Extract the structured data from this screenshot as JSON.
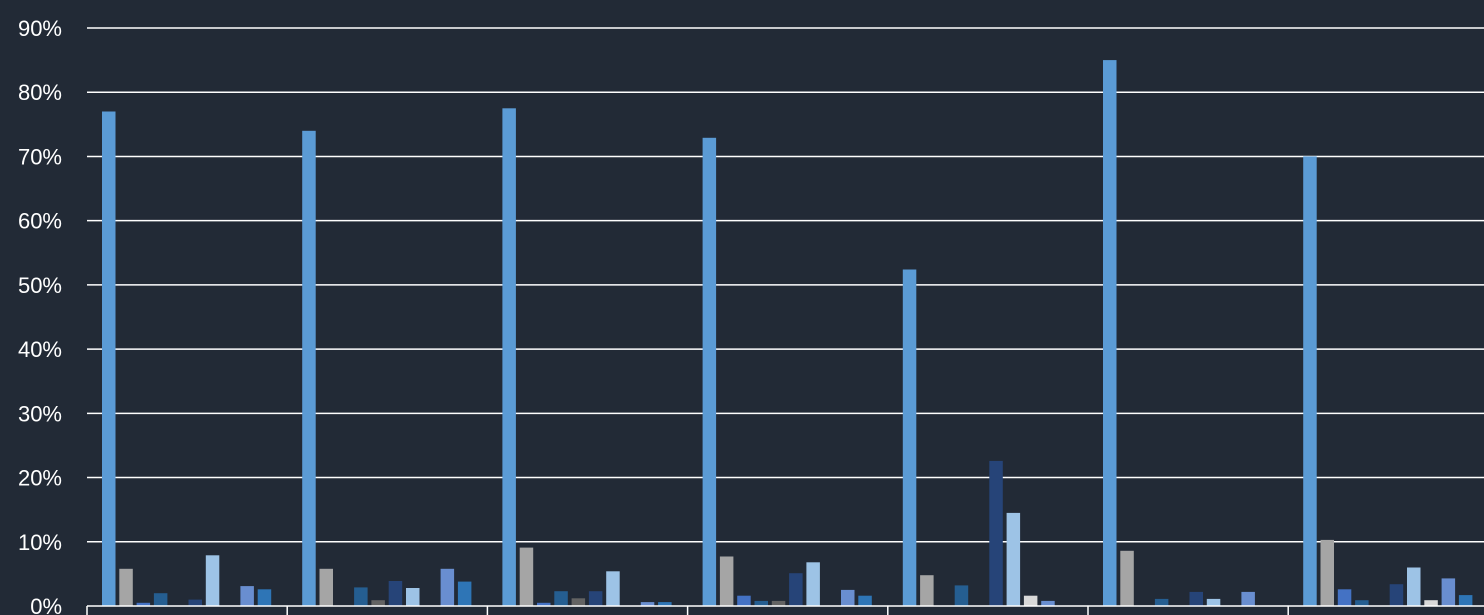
{
  "chart_data": {
    "type": "bar",
    "title": "",
    "xlabel": "",
    "ylabel": "",
    "ylim": [
      0,
      90
    ],
    "yticks": [
      0,
      10,
      20,
      30,
      40,
      50,
      60,
      70,
      80,
      90
    ],
    "ytick_labels": [
      "0%",
      "10%",
      "20%",
      "30%",
      "40%",
      "50%",
      "60%",
      "70%",
      "80%",
      "90%"
    ],
    "grid": true,
    "legend": "none",
    "group_count": 7,
    "series_colors": [
      "#5b9bd5",
      "#a5a5a5",
      "#4472c4",
      "#255e91",
      "#636363",
      "#264478",
      "#9dc3e6",
      "#d9d9d9",
      "#698ed0",
      "#2e75b6"
    ],
    "groups": [
      [
        77.0,
        5.8,
        0.5,
        2.0,
        0.0,
        1.0,
        7.9,
        0.0,
        3.1,
        2.6
      ],
      [
        74.0,
        5.8,
        0.0,
        2.9,
        0.9,
        3.9,
        2.8,
        0.0,
        5.8,
        3.8
      ],
      [
        77.5,
        9.1,
        0.5,
        2.3,
        1.2,
        2.3,
        5.4,
        0.0,
        0.6,
        0.6
      ],
      [
        72.9,
        7.7,
        1.6,
        0.8,
        0.8,
        5.1,
        6.8,
        0.0,
        2.5,
        1.6
      ],
      [
        52.4,
        4.8,
        0.0,
        3.2,
        0.0,
        22.6,
        14.5,
        1.6,
        0.8,
        0.0
      ],
      [
        85.0,
        8.6,
        0.0,
        1.1,
        0.0,
        2.2,
        1.1,
        0.0,
        2.2,
        0.0
      ],
      [
        70.0,
        10.3,
        2.6,
        0.9,
        0.0,
        3.4,
        6.0,
        0.9,
        4.3,
        1.7
      ]
    ]
  }
}
